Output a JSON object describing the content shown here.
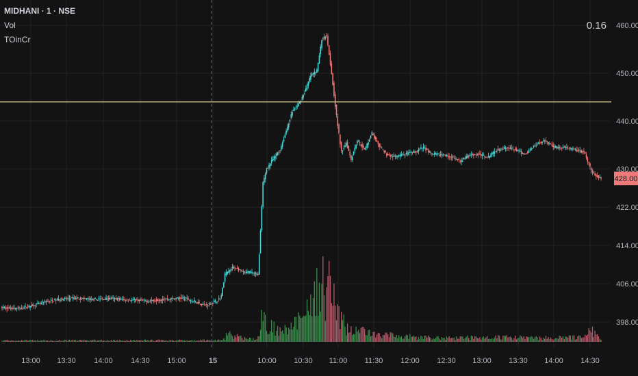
{
  "legend": {
    "symbol_line": "MIDHANI · 1 · NSE",
    "indicator_1": "Vol",
    "indicator_2": "TOinCr"
  },
  "top_right_value": "0.16",
  "colors": {
    "background": "#131313",
    "grid": "#232323",
    "up": "#4fd6d6",
    "down": "#f07a7a",
    "volume_up": "#3f8a4f",
    "volume_down": "#b35a6a",
    "horizontal_line": "#d8cf8a",
    "session_divider": "#4a6a8a",
    "price_badge_bg": "#f07a7a",
    "axis_text": "#b2b5be"
  },
  "chart_data": {
    "type": "candlestick",
    "symbol": "MIDHANI",
    "interval": "1",
    "exchange": "NSE",
    "y_axis": {
      "ticks": [
        398,
        406,
        414,
        422,
        430,
        440,
        450,
        460
      ],
      "tick_labels": [
        "398.00",
        "406.00",
        "414.00",
        "422.00",
        "430.00",
        "440.00",
        "450.00",
        "460.00"
      ],
      "range": [
        394,
        462
      ]
    },
    "x_axis": {
      "tick_labels": [
        "13:00",
        "13:30",
        "14:00",
        "14:30",
        "15:00",
        "15",
        "10:00",
        "10:30",
        "11:00",
        "11:30",
        "12:00",
        "12:30",
        "13:00",
        "13:30",
        "14:00",
        "14:30"
      ],
      "session_break_label": "15"
    },
    "current_price": 428.0,
    "current_price_label": "428.00",
    "horizontal_line_level": 444.0,
    "price_path": [
      {
        "t": 0,
        "p": 401.0
      },
      {
        "t": 15,
        "p": 400.8
      },
      {
        "t": 25,
        "p": 401.4
      },
      {
        "t": 40,
        "p": 402.4
      },
      {
        "t": 50,
        "p": 402.8
      },
      {
        "t": 60,
        "p": 403.0
      },
      {
        "t": 75,
        "p": 402.7
      },
      {
        "t": 90,
        "p": 402.9
      },
      {
        "t": 105,
        "p": 402.6
      },
      {
        "t": 120,
        "p": 402.4
      },
      {
        "t": 135,
        "p": 402.8
      },
      {
        "t": 150,
        "p": 403.0
      },
      {
        "t": 160,
        "p": 402.1
      },
      {
        "t": 168,
        "p": 401.5
      },
      {
        "t": 178,
        "p": 402.7
      },
      {
        "t": 180,
        "p": 403.5
      },
      {
        "t": 183,
        "p": 408.0
      },
      {
        "t": 190,
        "p": 409.5
      },
      {
        "t": 198,
        "p": 408.3
      },
      {
        "t": 205,
        "p": 408.5
      },
      {
        "t": 210,
        "p": 407.8
      },
      {
        "t": 212,
        "p": 417.0
      },
      {
        "t": 214,
        "p": 427.0
      },
      {
        "t": 217,
        "p": 430.0
      },
      {
        "t": 222,
        "p": 432.0
      },
      {
        "t": 228,
        "p": 434.0
      },
      {
        "t": 233,
        "p": 438.0
      },
      {
        "t": 238,
        "p": 442.0
      },
      {
        "t": 243,
        "p": 443.5
      },
      {
        "t": 248,
        "p": 446.0
      },
      {
        "t": 253,
        "p": 449.5
      },
      {
        "t": 258,
        "p": 450.5
      },
      {
        "t": 262,
        "p": 457.0
      },
      {
        "t": 266,
        "p": 458.0
      },
      {
        "t": 270,
        "p": 450.0
      },
      {
        "t": 274,
        "p": 441.0
      },
      {
        "t": 278,
        "p": 433.5
      },
      {
        "t": 282,
        "p": 435.5
      },
      {
        "t": 286,
        "p": 432.0
      },
      {
        "t": 291,
        "p": 436.0
      },
      {
        "t": 297,
        "p": 434.0
      },
      {
        "t": 303,
        "p": 437.5
      },
      {
        "t": 308,
        "p": 435.0
      },
      {
        "t": 315,
        "p": 433.0
      },
      {
        "t": 322,
        "p": 432.5
      },
      {
        "t": 330,
        "p": 433.0
      },
      {
        "t": 338,
        "p": 433.5
      },
      {
        "t": 345,
        "p": 434.5
      },
      {
        "t": 352,
        "p": 433.0
      },
      {
        "t": 360,
        "p": 433.0
      },
      {
        "t": 368,
        "p": 432.5
      },
      {
        "t": 375,
        "p": 431.5
      },
      {
        "t": 383,
        "p": 433.0
      },
      {
        "t": 390,
        "p": 433.0
      },
      {
        "t": 398,
        "p": 432.5
      },
      {
        "t": 405,
        "p": 434.0
      },
      {
        "t": 412,
        "p": 434.5
      },
      {
        "t": 420,
        "p": 434.0
      },
      {
        "t": 428,
        "p": 433.0
      },
      {
        "t": 436,
        "p": 435.0
      },
      {
        "t": 444,
        "p": 436.0
      },
      {
        "t": 452,
        "p": 434.5
      },
      {
        "t": 460,
        "p": 434.5
      },
      {
        "t": 468,
        "p": 434.0
      },
      {
        "t": 476,
        "p": 433.5
      },
      {
        "t": 480,
        "p": 431.0
      },
      {
        "t": 483,
        "p": 429.0
      },
      {
        "t": 489,
        "p": 428.2
      }
    ],
    "volume_profile": [
      {
        "t": 0,
        "v": 0.5
      },
      {
        "t": 180,
        "v": 0.6
      },
      {
        "t": 184,
        "v": 3
      },
      {
        "t": 200,
        "v": 1
      },
      {
        "t": 210,
        "v": 1.5
      },
      {
        "t": 212,
        "v": 8
      },
      {
        "t": 216,
        "v": 7
      },
      {
        "t": 224,
        "v": 5
      },
      {
        "t": 232,
        "v": 6
      },
      {
        "t": 240,
        "v": 7
      },
      {
        "t": 250,
        "v": 11
      },
      {
        "t": 256,
        "v": 16
      },
      {
        "t": 260,
        "v": 28
      },
      {
        "t": 264,
        "v": 18
      },
      {
        "t": 268,
        "v": 22
      },
      {
        "t": 272,
        "v": 12
      },
      {
        "t": 280,
        "v": 6
      },
      {
        "t": 300,
        "v": 3
      },
      {
        "t": 330,
        "v": 2
      },
      {
        "t": 360,
        "v": 1.5
      },
      {
        "t": 400,
        "v": 1.8
      },
      {
        "t": 430,
        "v": 1.5
      },
      {
        "t": 460,
        "v": 1.5
      },
      {
        "t": 478,
        "v": 2
      },
      {
        "t": 480,
        "v": 5
      },
      {
        "t": 484,
        "v": 3
      },
      {
        "t": 489,
        "v": 1
      }
    ]
  }
}
